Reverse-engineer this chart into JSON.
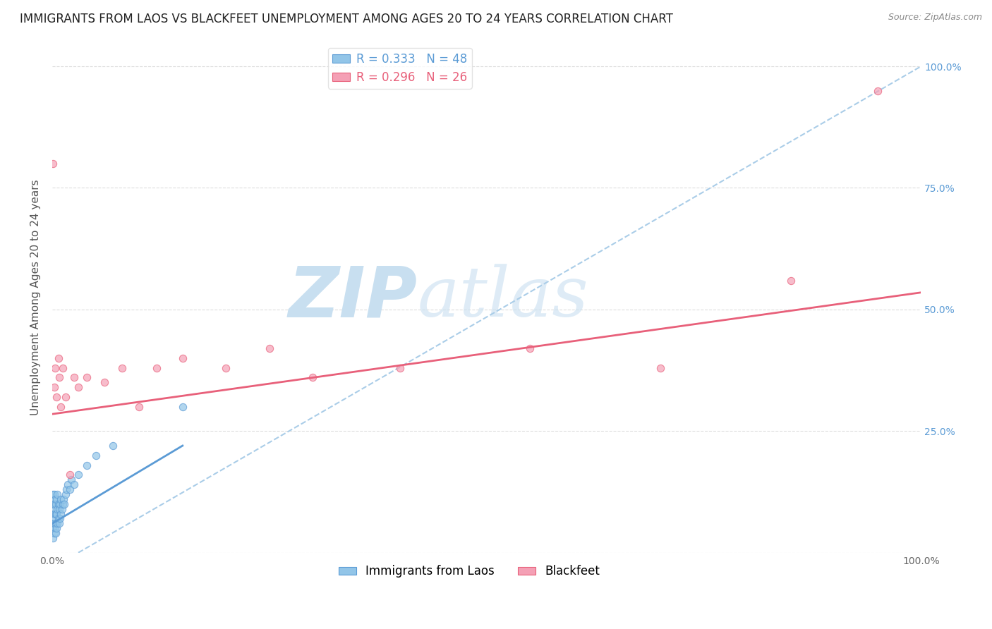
{
  "title": "IMMIGRANTS FROM LAOS VS BLACKFEET UNEMPLOYMENT AMONG AGES 20 TO 24 YEARS CORRELATION CHART",
  "source": "Source: ZipAtlas.com",
  "ylabel": "Unemployment Among Ages 20 to 24 years",
  "legend_label1": "Immigrants from Laos",
  "legend_label2": "Blackfeet",
  "r1": 0.333,
  "n1": 48,
  "r2": 0.296,
  "n2": 26,
  "color1": "#92C5E8",
  "color2": "#F4A0B5",
  "trendline1_color": "#5B9BD5",
  "trendline2_color": "#E8607A",
  "dashed_line_color": "#AACDE8",
  "x_ticks": [
    0.0,
    0.25,
    0.5,
    0.75,
    1.0
  ],
  "x_tick_labels": [
    "0.0%",
    "",
    "",
    "",
    "100.0%"
  ],
  "y_ticks": [
    0.0,
    0.25,
    0.5,
    0.75,
    1.0
  ],
  "y_tick_labels_left": [
    "",
    "",
    "",
    "",
    ""
  ],
  "y_tick_labels_right": [
    "",
    "25.0%",
    "50.0%",
    "75.0%",
    "100.0%"
  ],
  "blue_scatter_x": [
    0.0005,
    0.001,
    0.001,
    0.001,
    0.001,
    0.001,
    0.002,
    0.002,
    0.002,
    0.002,
    0.002,
    0.003,
    0.003,
    0.003,
    0.003,
    0.004,
    0.004,
    0.004,
    0.004,
    0.005,
    0.005,
    0.005,
    0.006,
    0.006,
    0.006,
    0.007,
    0.007,
    0.008,
    0.008,
    0.009,
    0.009,
    0.01,
    0.01,
    0.011,
    0.012,
    0.013,
    0.014,
    0.015,
    0.016,
    0.018,
    0.02,
    0.022,
    0.025,
    0.03,
    0.04,
    0.05,
    0.07,
    0.15
  ],
  "blue_scatter_y": [
    0.05,
    0.03,
    0.06,
    0.08,
    0.1,
    0.12,
    0.04,
    0.06,
    0.08,
    0.1,
    0.12,
    0.05,
    0.07,
    0.09,
    0.11,
    0.04,
    0.06,
    0.08,
    0.1,
    0.05,
    0.08,
    0.11,
    0.06,
    0.09,
    0.12,
    0.07,
    0.1,
    0.06,
    0.09,
    0.07,
    0.1,
    0.08,
    0.11,
    0.09,
    0.1,
    0.11,
    0.1,
    0.12,
    0.13,
    0.14,
    0.13,
    0.15,
    0.14,
    0.16,
    0.18,
    0.2,
    0.22,
    0.3
  ],
  "pink_scatter_x": [
    0.001,
    0.002,
    0.003,
    0.005,
    0.007,
    0.008,
    0.01,
    0.012,
    0.015,
    0.02,
    0.025,
    0.03,
    0.04,
    0.06,
    0.08,
    0.1,
    0.12,
    0.15,
    0.2,
    0.25,
    0.3,
    0.4,
    0.55,
    0.7,
    0.85,
    0.95
  ],
  "pink_scatter_y": [
    0.8,
    0.34,
    0.38,
    0.32,
    0.4,
    0.36,
    0.3,
    0.38,
    0.32,
    0.16,
    0.36,
    0.34,
    0.36,
    0.35,
    0.38,
    0.3,
    0.38,
    0.4,
    0.38,
    0.42,
    0.36,
    0.38,
    0.42,
    0.38,
    0.56,
    0.95
  ],
  "blue_trend_x": [
    0.0,
    0.15
  ],
  "blue_trend_y": [
    0.06,
    0.22
  ],
  "pink_trend_x": [
    0.0,
    1.0
  ],
  "pink_trend_y": [
    0.285,
    0.535
  ],
  "dashed_trend_x": [
    0.03,
    1.0
  ],
  "dashed_trend_y": [
    0.0,
    1.0
  ],
  "watermark_zip": "ZIP",
  "watermark_atlas": "atlas",
  "watermark_color": "#C8DFF0",
  "background_color": "#FFFFFF",
  "title_fontsize": 12,
  "axis_label_fontsize": 11,
  "tick_fontsize": 10,
  "legend_fontsize": 12
}
